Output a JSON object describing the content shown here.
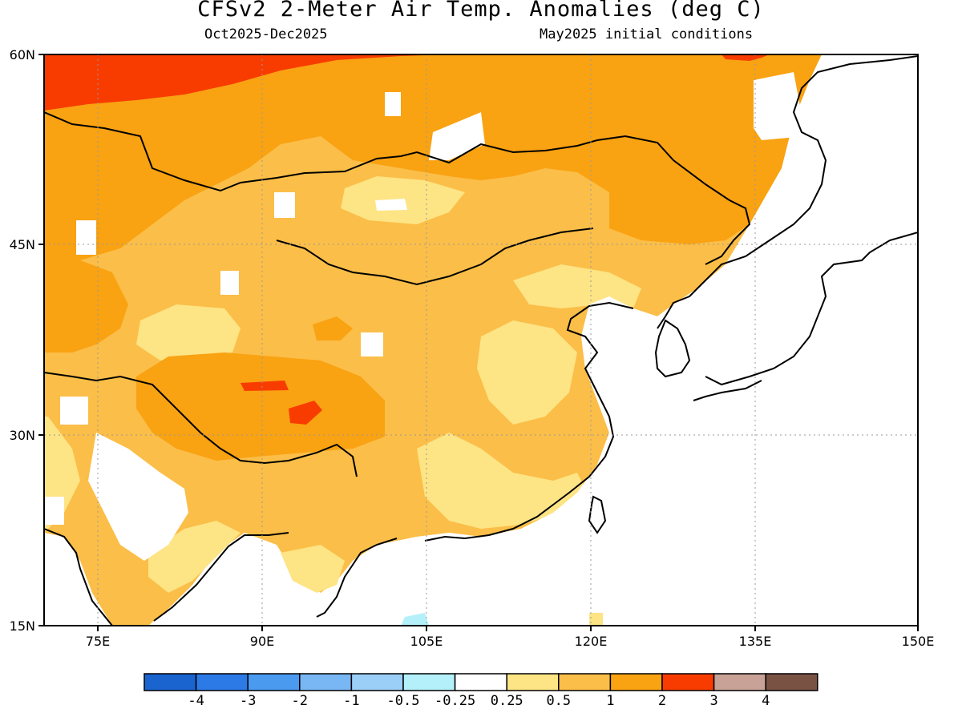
{
  "title": "CFSv2 2-Meter Air Temp. Anomalies (deg C)",
  "subtitle_left": "Oct2025-Dec2025",
  "subtitle_right": "May2025 initial conditions",
  "map": {
    "region": "East Asia",
    "lat_ticks": [
      "60N",
      "45N",
      "30N",
      "15N"
    ],
    "lon_ticks": [
      "75E",
      "90E",
      "105E",
      "120E",
      "135E",
      "150E"
    ],
    "lat_range": [
      15,
      60
    ],
    "lon_range": [
      70,
      150
    ],
    "gridlines": true,
    "land_only": true
  },
  "colorbar": {
    "labels": [
      "-4",
      "-3",
      "-2",
      "-1",
      "-0.5",
      "-0.25",
      "0.25",
      "0.5",
      "1",
      "2",
      "3",
      "4"
    ],
    "colors": [
      "#1a64d0",
      "#2c7ae6",
      "#4a9af0",
      "#78b6f4",
      "#9ccff8",
      "#b4f0fa",
      "#ffffff",
      "#fde484",
      "#fbbe48",
      "#f9a212",
      "#f83c00",
      "#c8a296",
      "#7a5244"
    ]
  },
  "anomaly_colors": {
    "0.25_to_0.5": "#fde484",
    "0.5_to_1": "#fbbe48",
    "1_to_2": "#f9a212",
    "2_to_3": "#f83c00",
    "-0.5_to_-0.25": "#b4f0fa"
  }
}
